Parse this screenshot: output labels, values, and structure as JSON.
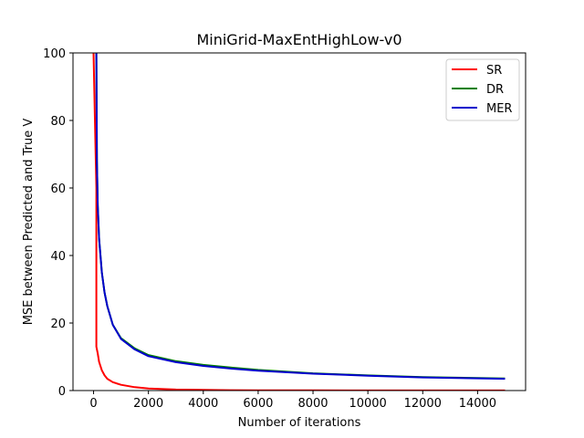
{
  "chart_data": {
    "type": "line",
    "title": "MiniGrid-MaxEntHighLow-v0",
    "xlabel": "Number of iterations",
    "ylabel": "MSE between Predicted and True V",
    "xlim": [
      -750,
      15750
    ],
    "ylim": [
      0,
      100
    ],
    "xticks": [
      0,
      2000,
      4000,
      6000,
      8000,
      10000,
      12000,
      14000
    ],
    "yticks": [
      0,
      20,
      40,
      60,
      80,
      100
    ],
    "grid": false,
    "legend_position": "top-right",
    "series": [
      {
        "name": "SR",
        "color": "#ff0000",
        "x": [
          0,
          100,
          101,
          150,
          200,
          300,
          400,
          500,
          700,
          1000,
          1500,
          2000,
          3000,
          4000,
          5000,
          6000,
          8000,
          10000,
          12000,
          15000
        ],
        "y": [
          100,
          60,
          13,
          11,
          8.5,
          6,
          4.5,
          3.5,
          2.5,
          1.7,
          1.0,
          0.6,
          0.3,
          0.2,
          0.1,
          0.08,
          0.05,
          0.04,
          0.03,
          0.02
        ]
      },
      {
        "name": "DR",
        "color": "#008000",
        "x": [
          100,
          120,
          150,
          200,
          300,
          400,
          500,
          700,
          1000,
          1500,
          2000,
          3000,
          4000,
          5000,
          6000,
          8000,
          10000,
          12000,
          15000
        ],
        "y": [
          100,
          68,
          55,
          45,
          35,
          29,
          25,
          19.5,
          15.5,
          12.5,
          10.5,
          8.7,
          7.6,
          6.8,
          6.1,
          5.1,
          4.5,
          4.0,
          3.6
        ]
      },
      {
        "name": "MER",
        "color": "#0000cc",
        "x": [
          100,
          120,
          150,
          200,
          300,
          400,
          500,
          700,
          1000,
          1500,
          2000,
          3000,
          4000,
          5000,
          6000,
          8000,
          10000,
          12000,
          15000
        ],
        "y": [
          100,
          68,
          55,
          45,
          35,
          29,
          25,
          19.5,
          15.3,
          12.2,
          10.2,
          8.4,
          7.3,
          6.5,
          5.9,
          5.0,
          4.4,
          3.9,
          3.5
        ]
      }
    ]
  }
}
